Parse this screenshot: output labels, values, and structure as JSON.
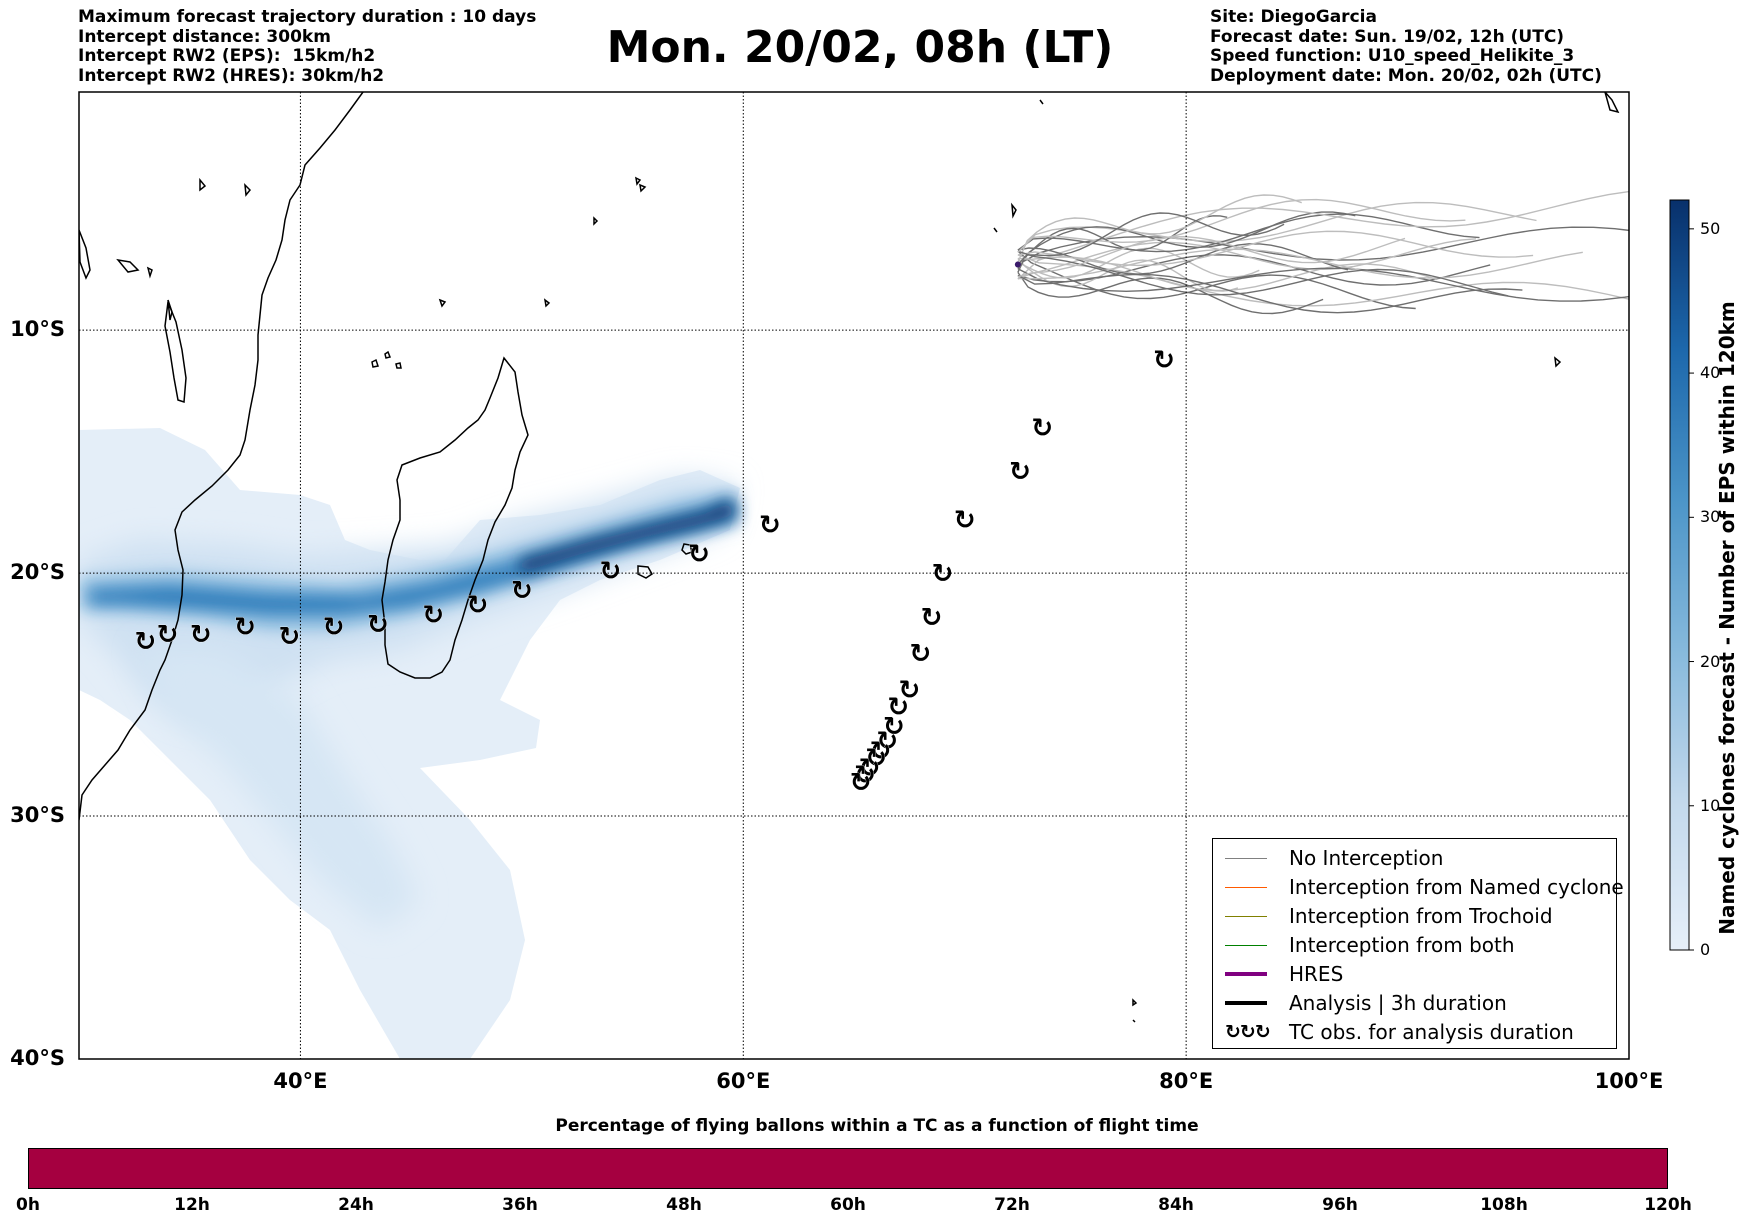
{
  "header": {
    "left": [
      "Maximum forecast trajectory duration : 10 days",
      "Intercept distance: 300km",
      "Intercept RW2 (EPS):  15km/h2",
      "Intercept RW2 (HRES): 30km/h2"
    ],
    "title": "Mon. 20/02, 08h (LT)",
    "right": [
      "Site: DiegoGarcia",
      "Forecast date: Sun. 19/02, 12h (UTC)",
      "Speed function: U10_speed_Helikite_3",
      "Deployment date: Mon. 20/02, 02h (UTC)"
    ]
  },
  "map": {
    "lon_range": [
      30,
      100
    ],
    "lat_range": [
      -40,
      -0.2
    ],
    "lon_ticks": [
      {
        "value": 40,
        "label": "40°E"
      },
      {
        "value": 60,
        "label": "60°E"
      },
      {
        "value": 80,
        "label": "80°E"
      },
      {
        "value": 100,
        "label": "100°E"
      }
    ],
    "lat_ticks": [
      {
        "value": -10,
        "label": "10°S"
      },
      {
        "value": -20,
        "label": "20°S"
      },
      {
        "value": -30,
        "label": "30°S"
      },
      {
        "value": -40,
        "label": "40°S"
      }
    ],
    "site": {
      "lon": 72.4,
      "lat": -7.3
    },
    "tc_obs_tracks": [
      {
        "name": "track-west",
        "points": [
          [
            58.0,
            -19.2
          ],
          [
            54.0,
            -19.9
          ],
          [
            50.0,
            -20.7
          ],
          [
            48.0,
            -21.3
          ],
          [
            46.0,
            -21.7
          ],
          [
            43.5,
            -22.1
          ],
          [
            41.5,
            -22.2
          ],
          [
            39.5,
            -22.6
          ],
          [
            37.5,
            -22.2
          ],
          [
            35.5,
            -22.5
          ],
          [
            34.0,
            -22.5
          ],
          [
            33.0,
            -22.8
          ]
        ]
      },
      {
        "name": "track-east",
        "points": [
          [
            79.0,
            -11.2
          ],
          [
            73.5,
            -14.0
          ],
          [
            72.5,
            -15.8
          ],
          [
            70.0,
            -17.8
          ],
          [
            69.0,
            -20.0
          ],
          [
            68.5,
            -21.8
          ],
          [
            68.0,
            -23.3
          ],
          [
            67.5,
            -24.8
          ],
          [
            67.0,
            -25.5
          ],
          [
            66.8,
            -26.3
          ],
          [
            66.5,
            -26.9
          ],
          [
            66.2,
            -27.3
          ],
          [
            66.0,
            -27.6
          ],
          [
            65.7,
            -28.0
          ],
          [
            65.5,
            -28.3
          ],
          [
            65.3,
            -28.6
          ]
        ]
      },
      {
        "name": "track-extra",
        "points": [
          [
            61.2,
            -18.0
          ]
        ]
      }
    ]
  },
  "legend": {
    "items": [
      {
        "label": "No Interception",
        "color": "#808080",
        "width": 1.2,
        "kind": "line"
      },
      {
        "label": "Interception from Named cyclone",
        "color": "#ff5a00",
        "width": 1.2,
        "kind": "line"
      },
      {
        "label": "Interception from Trochoid",
        "color": "#808000",
        "width": 1.2,
        "kind": "line"
      },
      {
        "label": "Interception from both",
        "color": "#008000",
        "width": 1.2,
        "kind": "line"
      },
      {
        "label": "HRES",
        "color": "#800080",
        "width": 4,
        "kind": "line"
      },
      {
        "label": "Analysis | 3h duration",
        "color": "#000000",
        "width": 4,
        "kind": "line"
      },
      {
        "label": "TC obs. for analysis duration",
        "color": "#000000",
        "width": 0,
        "kind": "tc-symbols"
      }
    ]
  },
  "colorbar": {
    "label": "Named cyclones forecast - Number of EPS within 120km",
    "min": 0,
    "max": 52,
    "ticks": [
      0,
      10,
      20,
      30,
      40,
      50
    ],
    "color_low": "#e6eff9",
    "color_high": "#08306b"
  },
  "flight_time_bar": {
    "title": "Percentage of flying ballons within a TC as a function of flight time",
    "color": "#a50040",
    "ticks": [
      "0h",
      "12h",
      "24h",
      "36h",
      "48h",
      "60h",
      "72h",
      "84h",
      "96h",
      "108h",
      "120h"
    ]
  }
}
